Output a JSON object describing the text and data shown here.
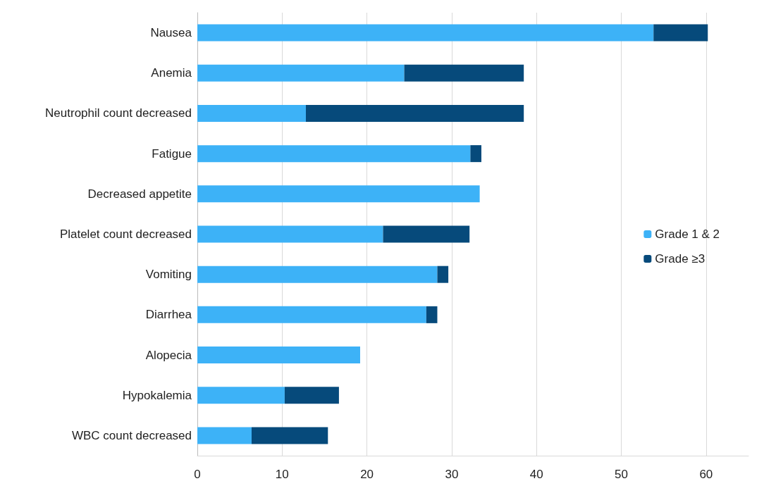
{
  "chart_data": {
    "type": "bar",
    "orientation": "horizontal",
    "stacked": true,
    "categories": [
      "Nausea",
      "Anemia",
      "Neutrophil count decreased",
      "Fatigue",
      "Decreased appetite",
      "Platelet count decreased",
      "Vomiting",
      "Diarrhea",
      "Alopecia",
      "Hypokalemia",
      "WBC count decreased"
    ],
    "series": [
      {
        "name": "Grade 1 & 2",
        "color": "#3db2f7",
        "values": [
          53.8,
          24.4,
          12.8,
          32.2,
          33.3,
          21.9,
          28.3,
          27.0,
          19.2,
          10.3,
          6.4
        ]
      },
      {
        "name": "Grade ≥3",
        "color": "#064a7b",
        "values": [
          6.4,
          14.1,
          25.7,
          1.3,
          0,
          10.2,
          1.3,
          1.3,
          0,
          6.4,
          9.0
        ]
      }
    ],
    "xlim": [
      0,
      65
    ],
    "xticks": [
      0,
      10,
      20,
      30,
      40,
      50,
      60
    ],
    "grid": "x",
    "legend": "right"
  }
}
